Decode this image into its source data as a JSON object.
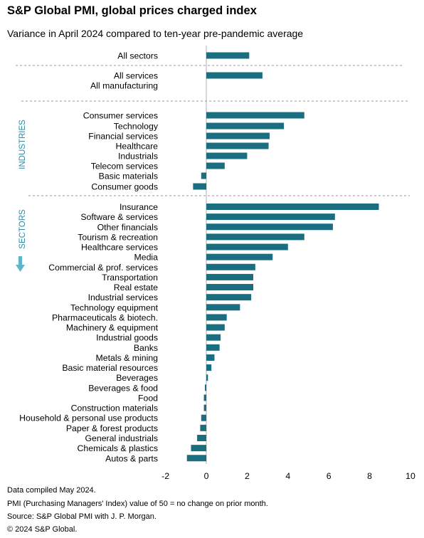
{
  "chart_data": {
    "type": "bar",
    "orientation": "horizontal",
    "title": "S&P Global PMI, global prices charged index",
    "subtitle": "Variance in April 2024 compared to ten-year pre-pandemic average",
    "xlim": [
      -2,
      10
    ],
    "xticks": [
      "-2",
      "0",
      "2",
      "4",
      "6",
      "8",
      "10"
    ],
    "bar_color": "#1a6e80",
    "group_labels": {
      "industries": "INDUSTRIES",
      "sectors": "SECTORS"
    },
    "rows": [
      {
        "label": "All sectors",
        "value": 2.1
      },
      {
        "label": "All services",
        "value": 2.75
      },
      {
        "label": "All manufacturing",
        "value": 0
      },
      {
        "label": "Consumer services",
        "value": 4.8
      },
      {
        "label": "Technology",
        "value": 3.8
      },
      {
        "label": "Financial services",
        "value": 3.1
      },
      {
        "label": "Healthcare",
        "value": 3.05
      },
      {
        "label": "Industrials",
        "value": 2.0
      },
      {
        "label": "Telecom services",
        "value": 0.9
      },
      {
        "label": "Basic materials",
        "value": -0.25
      },
      {
        "label": "Consumer goods",
        "value": -0.65
      },
      {
        "label": "Insurance",
        "value": 8.45
      },
      {
        "label": "Software & services",
        "value": 6.3
      },
      {
        "label": "Other financials",
        "value": 6.2
      },
      {
        "label": "Tourism & recreation",
        "value": 4.8
      },
      {
        "label": "Healthcare services",
        "value": 4.0
      },
      {
        "label": "Media",
        "value": 3.25
      },
      {
        "label": "Commercial & prof. services",
        "value": 2.4
      },
      {
        "label": "Transportation",
        "value": 2.3
      },
      {
        "label": "Real estate",
        "value": 2.3
      },
      {
        "label": "Industrial services",
        "value": 2.2
      },
      {
        "label": "Technology equipment",
        "value": 1.65
      },
      {
        "label": "Pharmaceuticals & biotech.",
        "value": 1.0
      },
      {
        "label": "Machinery & equipment",
        "value": 0.9
      },
      {
        "label": "Industrial goods",
        "value": 0.7
      },
      {
        "label": "Banks",
        "value": 0.65
      },
      {
        "label": "Metals & mining",
        "value": 0.4
      },
      {
        "label": "Basic material resources",
        "value": 0.25
      },
      {
        "label": "Beverages",
        "value": 0.08
      },
      {
        "label": "Beverages & food",
        "value": -0.07
      },
      {
        "label": "Food",
        "value": -0.12
      },
      {
        "label": "Construction materials",
        "value": -0.12
      },
      {
        "label": "Household & personal use products",
        "value": -0.25
      },
      {
        "label": "Paper & forest products",
        "value": -0.3
      },
      {
        "label": "General industrials",
        "value": -0.45
      },
      {
        "label": "Chemicals & plastics",
        "value": -0.75
      },
      {
        "label": "Autos & parts",
        "value": -0.95
      }
    ]
  },
  "footnotes": [
    "Data compiled May 2024.",
    "PMI (Purchasing Managers' Index) value of 50 = no change on prior month.",
    "Source: S&P Global PMI with J. P. Morgan.",
    "© 2024 S&P Global."
  ]
}
